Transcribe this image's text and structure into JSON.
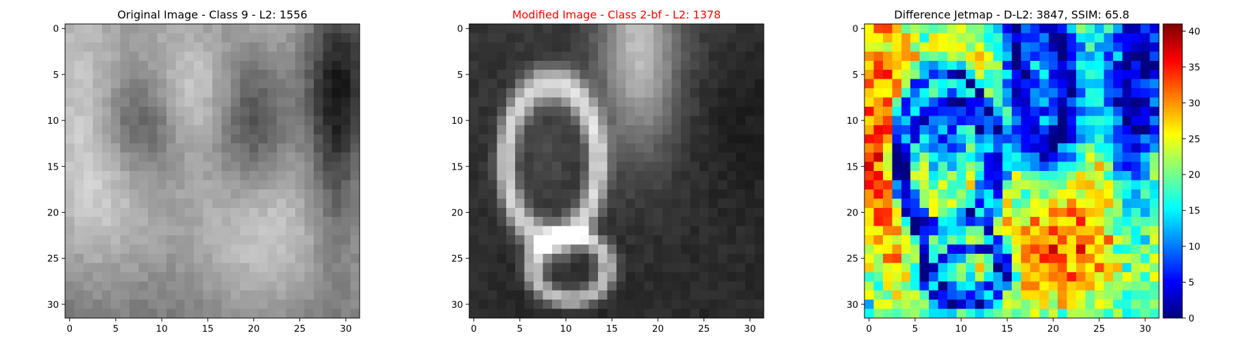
{
  "colors": {
    "title_default": "#000000",
    "title_highlight": "#ff0000",
    "colormap_gray": "gray",
    "colormap_diff": "jet"
  },
  "chart_data": [
    {
      "type": "heatmap",
      "title": "Original Image - Class 9 - L2: 1556",
      "title_color": "#000000",
      "colormap": "gray",
      "grid_size": [
        32,
        32
      ],
      "xlim": [
        -0.5,
        31.5
      ],
      "ylim": [
        31.5,
        -0.5
      ],
      "xticks": [
        0,
        5,
        10,
        15,
        20,
        25,
        30
      ],
      "yticks": [
        0,
        5,
        10,
        15,
        20,
        25,
        30
      ],
      "grid": false,
      "colorbar": false
    },
    {
      "type": "heatmap",
      "title": "Modified Image - Class 2-bf - L2: 1378",
      "title_color": "#ff0000",
      "colormap": "gray",
      "grid_size": [
        32,
        32
      ],
      "xlim": [
        -0.5,
        31.5
      ],
      "ylim": [
        31.5,
        -0.5
      ],
      "xticks": [
        0,
        5,
        10,
        15,
        20,
        25,
        30
      ],
      "yticks": [
        0,
        5,
        10,
        15,
        20,
        25,
        30
      ],
      "grid": false,
      "colorbar": false
    },
    {
      "type": "heatmap",
      "title": "Difference Jetmap - D-L2: 3847, SSIM: 65.8",
      "title_color": "#000000",
      "colormap": "jet",
      "grid_size": [
        32,
        32
      ],
      "xlim": [
        -0.5,
        31.5
      ],
      "ylim": [
        31.5,
        -0.5
      ],
      "xticks": [
        0,
        5,
        10,
        15,
        20,
        25,
        30
      ],
      "yticks": [
        0,
        5,
        10,
        15,
        20,
        25,
        30
      ],
      "grid": false,
      "colorbar": true,
      "colorbar_range": [
        0,
        41
      ],
      "colorbar_ticks": [
        0,
        5,
        10,
        15,
        20,
        25,
        30,
        35,
        40
      ]
    }
  ]
}
